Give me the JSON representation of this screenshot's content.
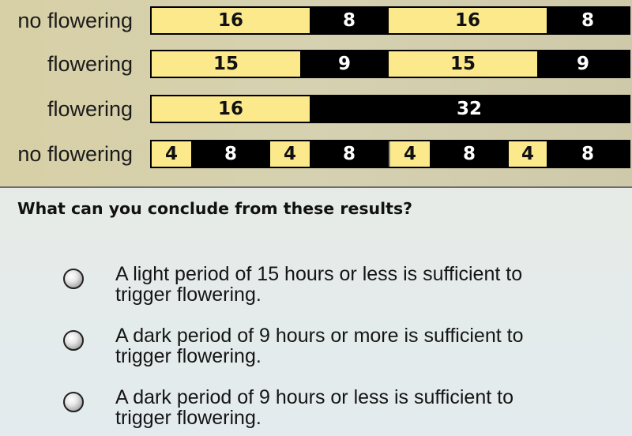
{
  "experiment": {
    "rows": [
      {
        "label": "no flowering",
        "segments": [
          {
            "type": "light",
            "hours": 16,
            "text": "16"
          },
          {
            "type": "dark",
            "hours": 8,
            "text": "8"
          },
          {
            "type": "light",
            "hours": 16,
            "text": "16"
          },
          {
            "type": "dark",
            "hours": 8,
            "text": "8"
          }
        ]
      },
      {
        "label": "flowering",
        "segments": [
          {
            "type": "light",
            "hours": 15,
            "text": "15"
          },
          {
            "type": "dark",
            "hours": 9,
            "text": "9"
          },
          {
            "type": "light",
            "hours": 15,
            "text": "15"
          },
          {
            "type": "dark",
            "hours": 9,
            "text": "9"
          }
        ]
      },
      {
        "label": "flowering",
        "segments": [
          {
            "type": "light",
            "hours": 16,
            "text": "16"
          },
          {
            "type": "dark",
            "hours": 32,
            "text": "32"
          }
        ]
      },
      {
        "label": "no flowering",
        "segments": [
          {
            "type": "light",
            "hours": 4,
            "text": "4"
          },
          {
            "type": "dark",
            "hours": 8,
            "text": "8"
          },
          {
            "type": "light",
            "hours": 4,
            "text": "4"
          },
          {
            "type": "dark",
            "hours": 8,
            "text": "8"
          },
          {
            "type": "light",
            "hours": 4,
            "text": "4"
          },
          {
            "type": "dark",
            "hours": 8,
            "text": "8"
          },
          {
            "type": "light",
            "hours": 4,
            "text": "4"
          },
          {
            "type": "dark",
            "hours": 8,
            "text": "8"
          }
        ]
      }
    ]
  },
  "question": {
    "text": "What can you conclude from these results?",
    "options": [
      {
        "line1": "A light period of 15 hours or less is sufficient to",
        "line2": "trigger flowering.",
        "selected": false
      },
      {
        "line1": "A dark period of 9 hours or more is sufficient to",
        "line2": "trigger flowering.",
        "selected": false
      },
      {
        "line1": "A dark period of 9 hours or less is sufficient to",
        "line2": "trigger flowering.",
        "selected": false
      }
    ]
  },
  "colors": {
    "light": "#fbe98c",
    "dark": "#000000",
    "panel": "#d6d1b0"
  }
}
